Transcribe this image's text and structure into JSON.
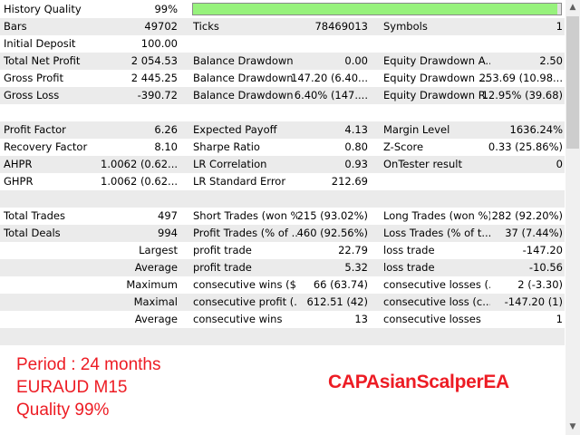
{
  "history_quality": {
    "label": "History Quality",
    "value": "99%",
    "fill_percent": 99,
    "bar_color": "#97f27c"
  },
  "rows": [
    {
      "grey": true,
      "cells": [
        "Bars",
        "49702",
        "Ticks",
        "78469013",
        "Symbols",
        "1"
      ]
    },
    {
      "grey": false,
      "cells": [
        "Initial Deposit",
        "100.00",
        "",
        "",
        "",
        ""
      ]
    },
    {
      "grey": true,
      "cells": [
        "Total Net Profit",
        "2 054.53",
        "Balance Drawdown ...",
        "0.00",
        "Equity Drawdown A...",
        "2.50"
      ]
    },
    {
      "grey": false,
      "cells": [
        "Gross Profit",
        "2 445.25",
        "Balance Drawdown ...",
        "147.20 (6.40...",
        "Equity Drawdown ...",
        "253.69 (10.98..."
      ]
    },
    {
      "grey": true,
      "cells": [
        "Gross Loss",
        "-390.72",
        "Balance Drawdown ...",
        "6.40% (147....",
        "Equity Drawdown R...",
        "12.95% (39.68)"
      ]
    },
    {
      "grey": false,
      "cells": [
        "",
        "",
        "",
        "",
        "",
        ""
      ]
    },
    {
      "grey": true,
      "cells": [
        "Profit Factor",
        "6.26",
        "Expected Payoff",
        "4.13",
        "Margin Level",
        "1636.24%"
      ]
    },
    {
      "grey": false,
      "cells": [
        "Recovery Factor",
        "8.10",
        "Sharpe Ratio",
        "0.80",
        "Z-Score",
        "0.33 (25.86%)"
      ]
    },
    {
      "grey": true,
      "cells": [
        "AHPR",
        "1.0062 (0.62...",
        "LR Correlation",
        "0.93",
        "OnTester result",
        "0"
      ]
    },
    {
      "grey": false,
      "cells": [
        "GHPR",
        "1.0062 (0.62...",
        "LR Standard Error",
        "212.69",
        "",
        ""
      ]
    },
    {
      "grey": true,
      "cells": [
        "",
        "",
        "",
        "",
        "",
        ""
      ]
    },
    {
      "grey": false,
      "cells": [
        "Total Trades",
        "497",
        "Short Trades (won %)",
        "215 (93.02%)",
        "Long Trades (won %)",
        "282 (92.20%)"
      ]
    },
    {
      "grey": true,
      "cells": [
        "Total Deals",
        "994",
        "Profit Trades (% of ...",
        "460 (92.56%)",
        "Loss Trades (% of t...",
        "37 (7.44%)"
      ]
    },
    {
      "grey": false,
      "cells": [
        "",
        "Largest",
        "profit trade",
        "22.79",
        "loss trade",
        "-147.20"
      ]
    },
    {
      "grey": true,
      "cells": [
        "",
        "Average",
        "profit trade",
        "5.32",
        "loss trade",
        "-10.56"
      ]
    },
    {
      "grey": false,
      "cells": [
        "",
        "Maximum",
        "consecutive wins ($)",
        "66 (63.74)",
        "consecutive losses (...",
        "2 (-3.30)"
      ]
    },
    {
      "grey": true,
      "cells": [
        "",
        "Maximal",
        "consecutive profit (...",
        "612.51 (42)",
        "consecutive loss (c...",
        "-147.20 (1)"
      ]
    },
    {
      "grey": false,
      "cells": [
        "",
        "Average",
        "consecutive wins",
        "13",
        "consecutive losses",
        "1"
      ]
    },
    {
      "grey": true,
      "cells": [
        "",
        "",
        "",
        "",
        "",
        ""
      ]
    }
  ],
  "notes": {
    "period": "Period : 24 months",
    "symbol": "EURAUD M15",
    "quality": "Quality 99%",
    "color": "#ed1c24"
  },
  "brand": "CAPAsianScalperEA",
  "scrollbar": {
    "up_icon": "chevron-up-icon",
    "down_icon": "chevron-down-icon"
  }
}
